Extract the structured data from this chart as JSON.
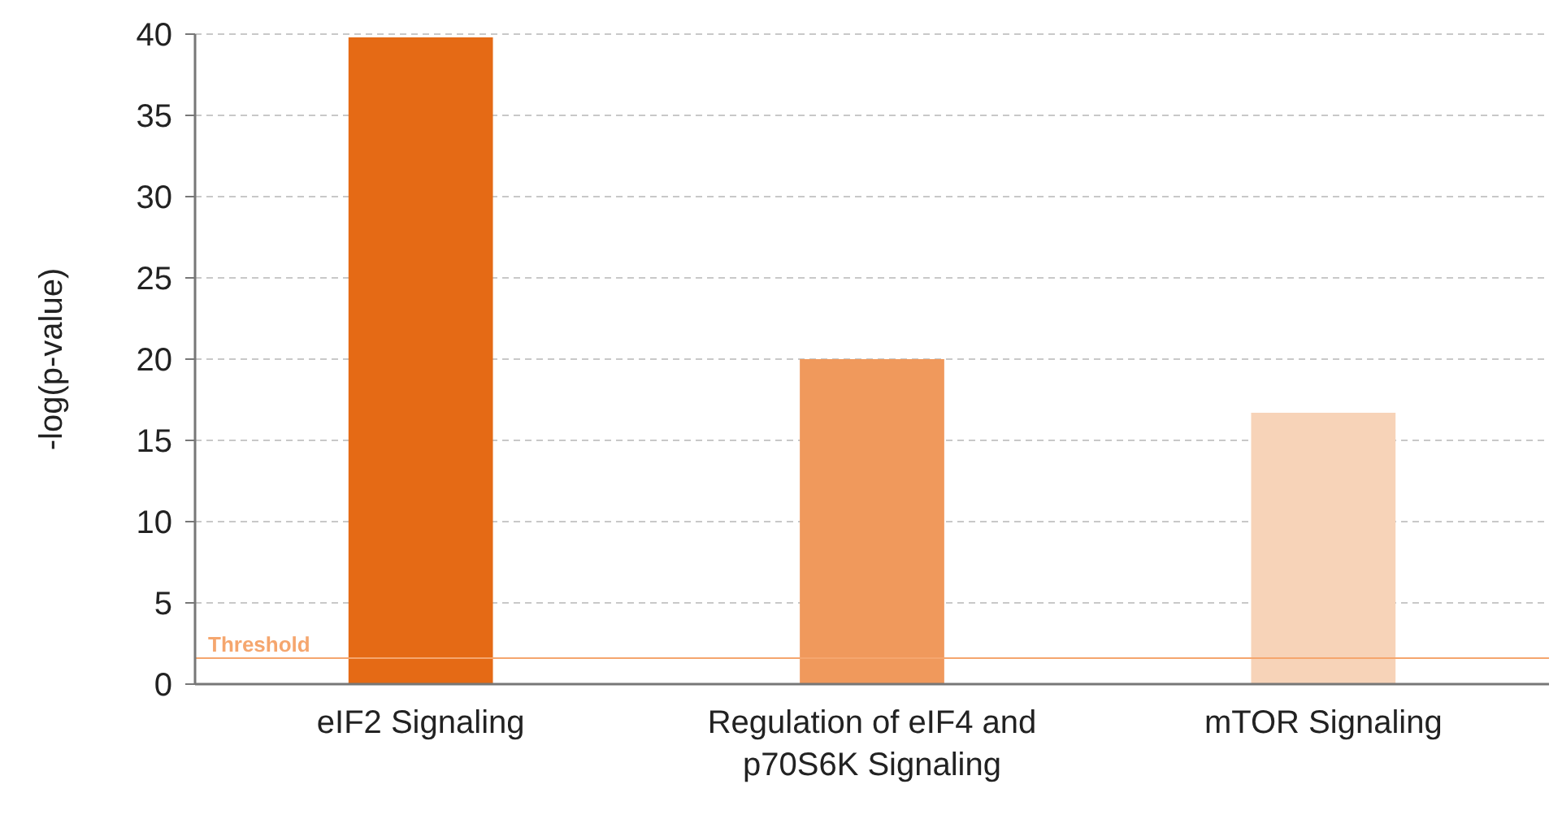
{
  "chart_data": {
    "type": "bar",
    "ylabel": "-log(p-value)",
    "categories": [
      "eIF2 Signaling",
      "Regulation of eIF4 and p70S6K Signaling",
      "mTOR Signaling"
    ],
    "values": [
      39.8,
      20.0,
      16.7
    ],
    "colors": [
      "#e56a15",
      "#f0995c",
      "#f7d3b8"
    ],
    "ylim": [
      0,
      40
    ],
    "yticks": [
      0,
      5,
      10,
      15,
      20,
      25,
      30,
      35,
      40
    ],
    "grid": "y",
    "ref_lines": [
      {
        "axis": "y",
        "value": 1.6,
        "label": "Threshold",
        "color": "#f5a66e"
      }
    ]
  }
}
